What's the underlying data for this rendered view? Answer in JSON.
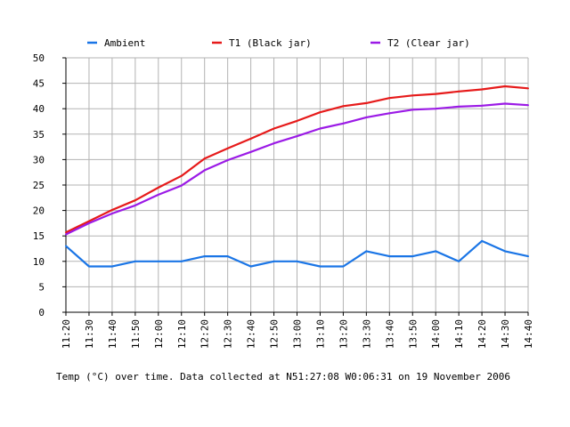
{
  "chart_data": {
    "type": "line",
    "caption": "Temp (°C) over time. Data collected at N51:27:08 W0:06:31 on 19 November 2006",
    "x": [
      "11:20",
      "11:30",
      "11:40",
      "11:50",
      "12:00",
      "12:10",
      "12:20",
      "12:30",
      "12:40",
      "12:50",
      "13:00",
      "13:10",
      "13:20",
      "13:30",
      "13:40",
      "13:50",
      "14:00",
      "14:10",
      "14:20",
      "14:30",
      "14:40"
    ],
    "ylim": [
      0,
      50
    ],
    "yticks": [
      0,
      5,
      10,
      15,
      20,
      25,
      30,
      35,
      40,
      45,
      50
    ],
    "grid": true,
    "legend_position": "top",
    "series": [
      {
        "name": "Ambient",
        "color": "#1a75e6",
        "values": [
          13,
          9,
          9,
          10,
          10,
          10,
          11,
          11,
          9,
          10,
          10,
          9,
          9,
          12,
          11,
          11,
          12,
          10,
          14,
          12,
          11
        ]
      },
      {
        "name": "T1 (Black jar)",
        "color": "#e61a1a",
        "values": [
          15.7,
          17.9,
          20.1,
          22.0,
          24.5,
          26.8,
          30.2,
          32.2,
          34.1,
          36.1,
          37.6,
          39.3,
          40.5,
          41.1,
          42.1,
          42.6,
          42.9,
          43.4,
          43.8,
          44.4,
          44.0
        ]
      },
      {
        "name": "T2 (Clear jar)",
        "color": "#9b1ae6",
        "values": [
          15.3,
          17.5,
          19.4,
          21.0,
          23.1,
          24.9,
          27.9,
          29.9,
          31.5,
          33.2,
          34.6,
          36.1,
          37.1,
          38.3,
          39.1,
          39.8,
          40.0,
          40.4,
          40.6,
          41.0,
          40.7
        ]
      }
    ]
  }
}
